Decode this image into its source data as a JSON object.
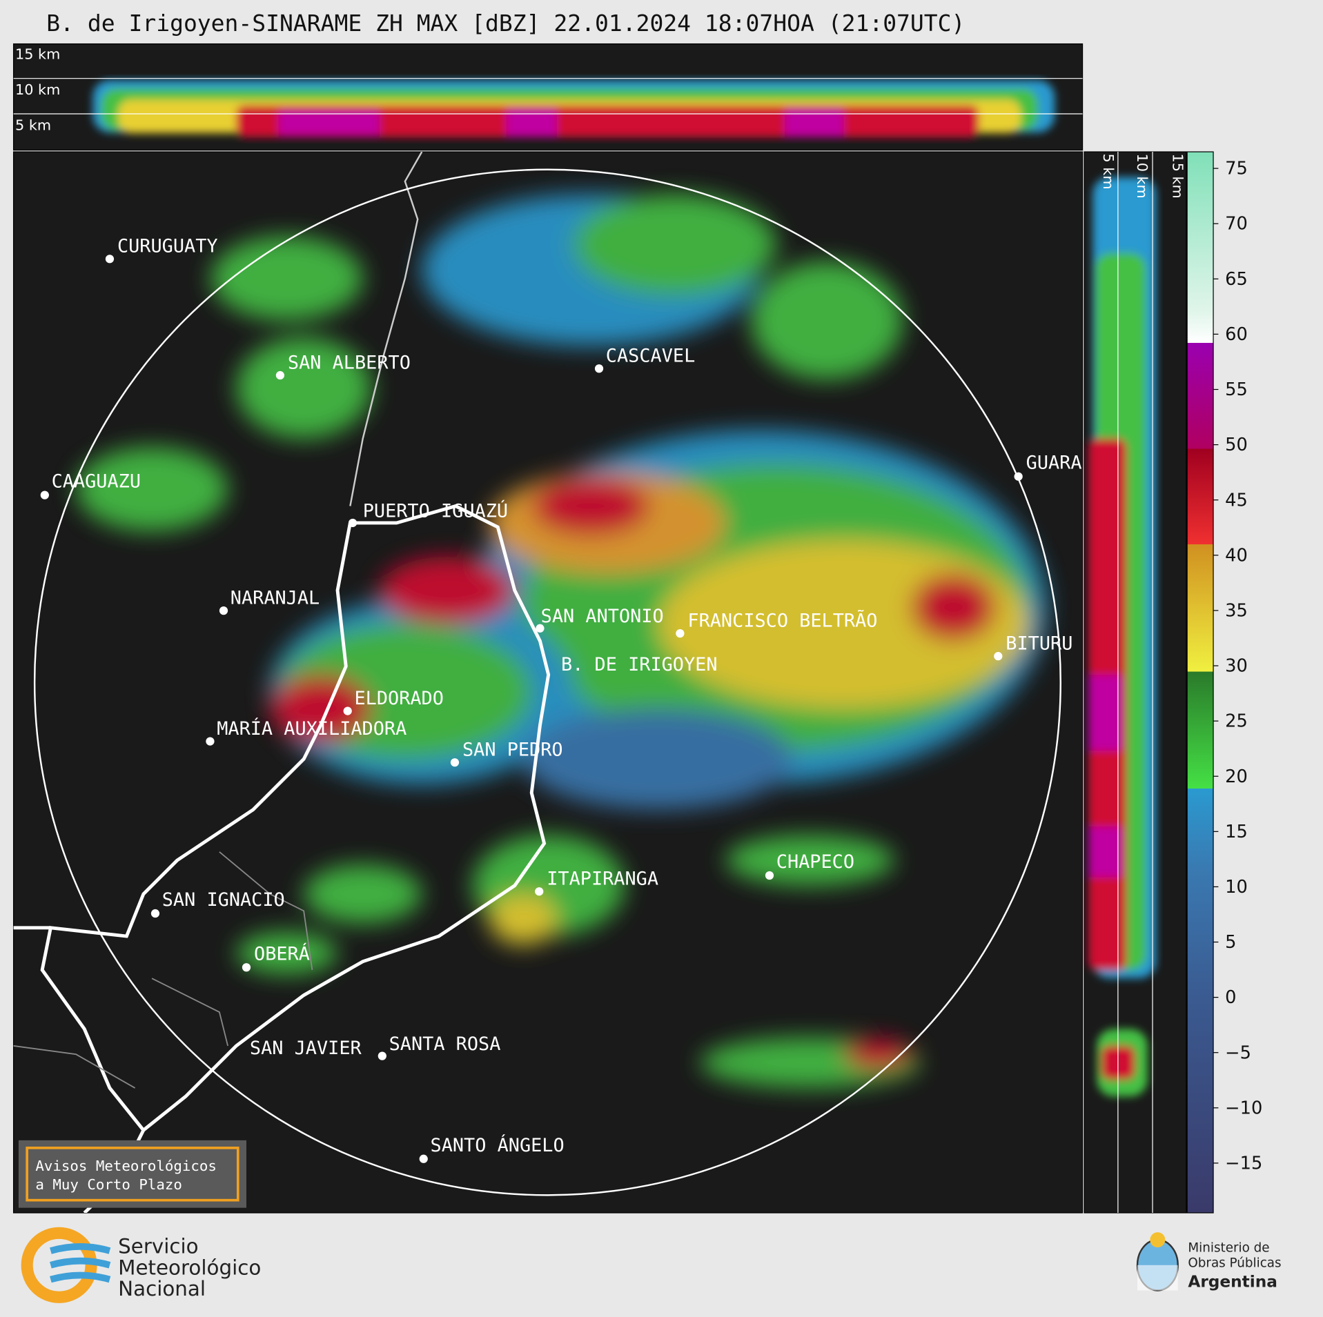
{
  "title": "B. de Irigoyen-SINARAME ZH MAX [dBZ] 22.01.2024 18:07HOA (21:07UTC)",
  "height_labels": [
    "15 km",
    "10 km",
    "5 km"
  ],
  "cities": [
    "CURUGUATY",
    "SAN ALBERTO",
    "CASCAVEL",
    "CAAGUAZU",
    "GUARA",
    "PUERTO IGUAZÚ",
    "NARANJAL",
    "SAN ANTONIO",
    "FRANCISCO BELTRÃO",
    "BITURU",
    "B. DE IRIGOYEN",
    "ELDORADO",
    "MARÍA AUXILIADORA",
    "SAN PEDRO",
    "ITAPIRANGA",
    "CHAPECO",
    "SAN IGNACIO",
    "OBERÁ",
    "SAN JAVIER",
    "SANTA ROSA",
    "SANTO ÁNGELO"
  ],
  "colorbar": {
    "clim": [
      -19.5,
      76.5
    ],
    "ticks": [
      75,
      70,
      65,
      60,
      55,
      50,
      45,
      40,
      35,
      30,
      25,
      20,
      15,
      10,
      5,
      0,
      {
        "value": -5,
        "label": "−5"
      },
      {
        "value": -10,
        "label": "−10"
      },
      {
        "value": -15,
        "label": "−15"
      }
    ]
  },
  "warning_box": [
    "Avisos Meteorológicos",
    "a Muy Corto Plazo"
  ],
  "logo_left": [
    "Servicio",
    "Meteorológico",
    "Nacional"
  ],
  "logo_right": [
    "Ministerio de",
    "Obras Públicas",
    "Argentina"
  ]
}
